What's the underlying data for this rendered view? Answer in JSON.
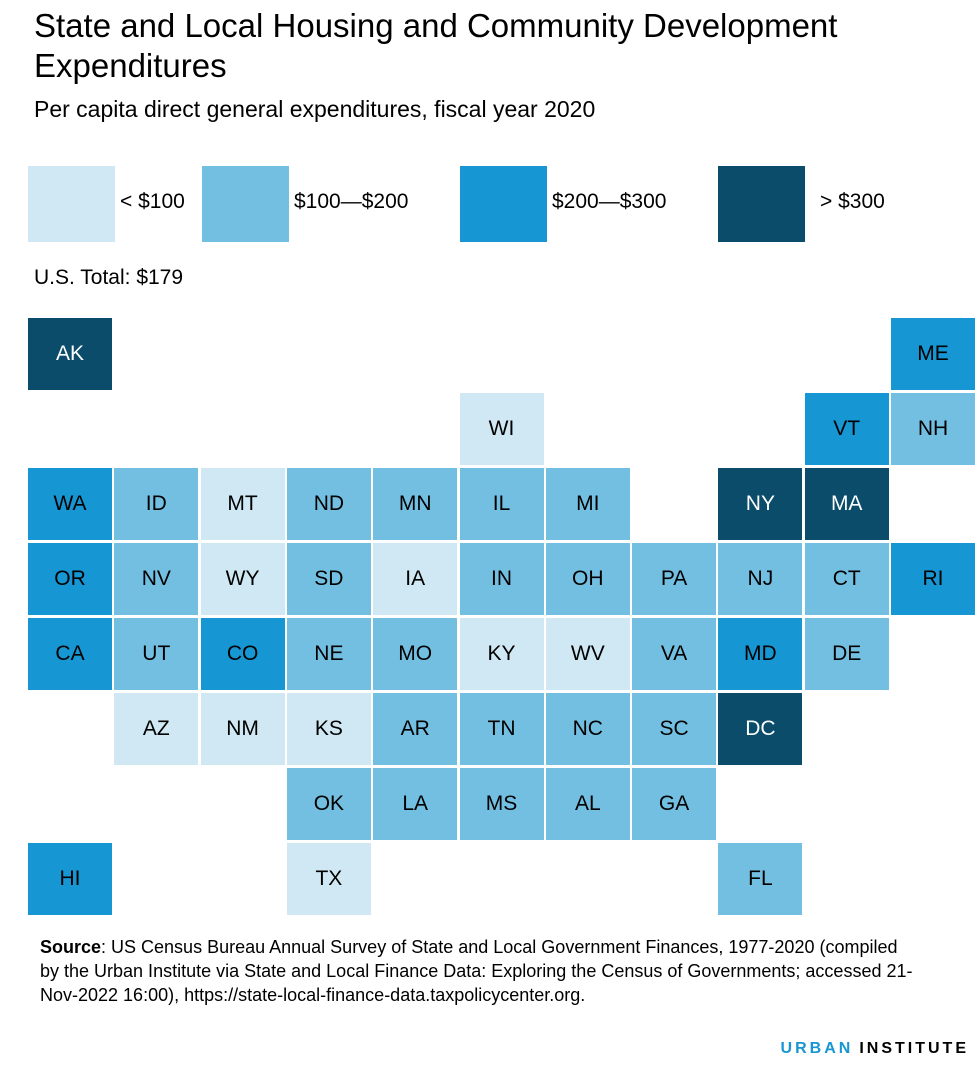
{
  "title": "State and Local Housing and Community Development Expenditures",
  "subtitle": "Per capita direct general expenditures, fiscal year 2020",
  "us_total": "U.S. Total: $179",
  "legend": [
    {
      "label": "< $100",
      "color": "#cfe8f3",
      "text": "#000"
    },
    {
      "label": "$100—$200",
      "color": "#73bfe2",
      "text": "#000"
    },
    {
      "label": "$200—$300",
      "color": "#1696d2",
      "text": "#000"
    },
    {
      "label": "> $300",
      "color": "#0a4c6a",
      "text": "#fff"
    }
  ],
  "chart_data": {
    "type": "tile-map",
    "bins": [
      "< $100",
      "$100—$200",
      "$200—$300",
      "> $300"
    ],
    "states": [
      {
        "abbr": "AK",
        "bin": 3,
        "row": 0,
        "col": 0
      },
      {
        "abbr": "ME",
        "bin": 2,
        "row": 0,
        "col": 10
      },
      {
        "abbr": "WI",
        "bin": 0,
        "row": 1,
        "col": 5
      },
      {
        "abbr": "VT",
        "bin": 2,
        "row": 1,
        "col": 9
      },
      {
        "abbr": "NH",
        "bin": 1,
        "row": 1,
        "col": 10
      },
      {
        "abbr": "WA",
        "bin": 2,
        "row": 2,
        "col": 0
      },
      {
        "abbr": "ID",
        "bin": 1,
        "row": 2,
        "col": 1
      },
      {
        "abbr": "MT",
        "bin": 0,
        "row": 2,
        "col": 2
      },
      {
        "abbr": "ND",
        "bin": 1,
        "row": 2,
        "col": 3
      },
      {
        "abbr": "MN",
        "bin": 1,
        "row": 2,
        "col": 4
      },
      {
        "abbr": "IL",
        "bin": 1,
        "row": 2,
        "col": 5
      },
      {
        "abbr": "MI",
        "bin": 1,
        "row": 2,
        "col": 6
      },
      {
        "abbr": "NY",
        "bin": 3,
        "row": 2,
        "col": 8
      },
      {
        "abbr": "MA",
        "bin": 3,
        "row": 2,
        "col": 9
      },
      {
        "abbr": "OR",
        "bin": 2,
        "row": 3,
        "col": 0
      },
      {
        "abbr": "NV",
        "bin": 1,
        "row": 3,
        "col": 1
      },
      {
        "abbr": "WY",
        "bin": 0,
        "row": 3,
        "col": 2
      },
      {
        "abbr": "SD",
        "bin": 1,
        "row": 3,
        "col": 3
      },
      {
        "abbr": "IA",
        "bin": 0,
        "row": 3,
        "col": 4
      },
      {
        "abbr": "IN",
        "bin": 1,
        "row": 3,
        "col": 5
      },
      {
        "abbr": "OH",
        "bin": 1,
        "row": 3,
        "col": 6
      },
      {
        "abbr": "PA",
        "bin": 1,
        "row": 3,
        "col": 7
      },
      {
        "abbr": "NJ",
        "bin": 1,
        "row": 3,
        "col": 8
      },
      {
        "abbr": "CT",
        "bin": 1,
        "row": 3,
        "col": 9
      },
      {
        "abbr": "RI",
        "bin": 2,
        "row": 3,
        "col": 10
      },
      {
        "abbr": "CA",
        "bin": 2,
        "row": 4,
        "col": 0
      },
      {
        "abbr": "UT",
        "bin": 1,
        "row": 4,
        "col": 1
      },
      {
        "abbr": "CO",
        "bin": 2,
        "row": 4,
        "col": 2
      },
      {
        "abbr": "NE",
        "bin": 1,
        "row": 4,
        "col": 3
      },
      {
        "abbr": "MO",
        "bin": 1,
        "row": 4,
        "col": 4
      },
      {
        "abbr": "KY",
        "bin": 0,
        "row": 4,
        "col": 5
      },
      {
        "abbr": "WV",
        "bin": 0,
        "row": 4,
        "col": 6
      },
      {
        "abbr": "VA",
        "bin": 1,
        "row": 4,
        "col": 7
      },
      {
        "abbr": "MD",
        "bin": 2,
        "row": 4,
        "col": 8
      },
      {
        "abbr": "DE",
        "bin": 1,
        "row": 4,
        "col": 9
      },
      {
        "abbr": "AZ",
        "bin": 0,
        "row": 5,
        "col": 1
      },
      {
        "abbr": "NM",
        "bin": 0,
        "row": 5,
        "col": 2
      },
      {
        "abbr": "KS",
        "bin": 0,
        "row": 5,
        "col": 3
      },
      {
        "abbr": "AR",
        "bin": 1,
        "row": 5,
        "col": 4
      },
      {
        "abbr": "TN",
        "bin": 1,
        "row": 5,
        "col": 5
      },
      {
        "abbr": "NC",
        "bin": 1,
        "row": 5,
        "col": 6
      },
      {
        "abbr": "SC",
        "bin": 1,
        "row": 5,
        "col": 7
      },
      {
        "abbr": "DC",
        "bin": 3,
        "row": 5,
        "col": 8
      },
      {
        "abbr": "OK",
        "bin": 1,
        "row": 6,
        "col": 3
      },
      {
        "abbr": "LA",
        "bin": 1,
        "row": 6,
        "col": 4
      },
      {
        "abbr": "MS",
        "bin": 1,
        "row": 6,
        "col": 5
      },
      {
        "abbr": "AL",
        "bin": 1,
        "row": 6,
        "col": 6
      },
      {
        "abbr": "GA",
        "bin": 1,
        "row": 6,
        "col": 7
      },
      {
        "abbr": "HI",
        "bin": 2,
        "row": 7,
        "col": 0
      },
      {
        "abbr": "TX",
        "bin": 0,
        "row": 7,
        "col": 3
      },
      {
        "abbr": "FL",
        "bin": 1,
        "row": 7,
        "col": 8
      }
    ]
  },
  "source": {
    "label": "Source",
    "text": ": US Census Bureau Annual Survey of State and Local Government Finances, 1977-2020 (compiled by the Urban Institute via State and Local Finance Data: Exploring the Census of Governments; accessed 21-Nov-2022 16:00), https://state-local-finance-data.taxpolicycenter.org."
  },
  "logo": {
    "part1": "URBAN",
    "part2": "INSTITUTE",
    "color1": "#1696d2"
  }
}
